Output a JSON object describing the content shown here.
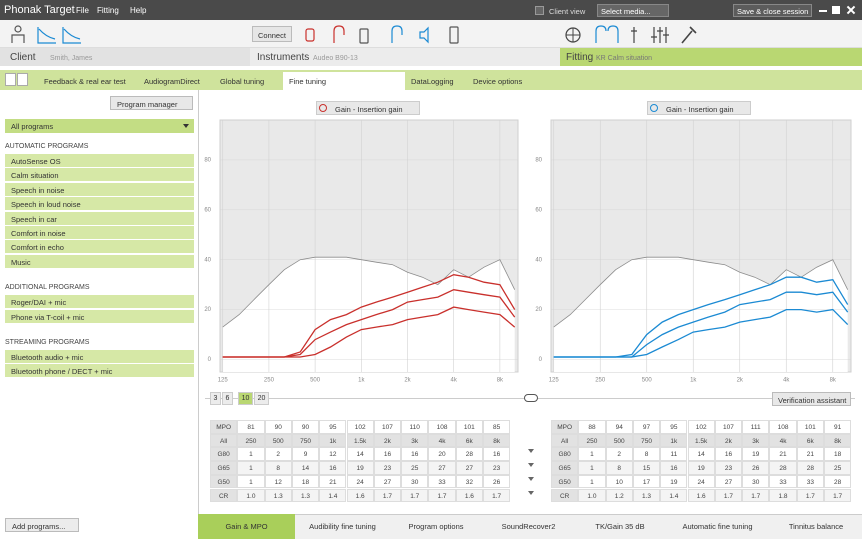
{
  "title_bar": {
    "app": "Phonak Target",
    "menu": [
      "File",
      "Fitting",
      "Help"
    ],
    "client_view": "Client view",
    "media_select": "Select media...",
    "save": "Save & close session"
  },
  "toolbar": {
    "connect": "Connect"
  },
  "session": {
    "client_label": "Client",
    "client": "Smith, James",
    "instruments_label": "Instruments",
    "instruments": "Audeo B90-13",
    "fitting_label": "Fitting",
    "fitting": "KR Calm situation"
  },
  "tabs": {
    "items": [
      "Feedback & real ear test",
      "AudiogramDirect",
      "Global tuning",
      "Fine tuning",
      "DataLogging",
      "Device options"
    ],
    "active": 3
  },
  "programs": {
    "manager": "Program manager",
    "selector": "All programs",
    "groups": [
      {
        "heading": "AUTOMATIC PROGRAMS",
        "items": [
          "AutoSense OS",
          "Calm situation",
          "Speech in noise",
          "Speech in loud noise",
          "Speech in car",
          "Comfort in noise",
          "Comfort in echo",
          "Music"
        ]
      },
      {
        "heading": "ADDITIONAL PROGRAMS",
        "items": [
          "Roger/DAI + mic",
          "Phone via T-coil + mic"
        ]
      },
      {
        "heading": "STREAMING PROGRAMS",
        "items": [
          "Bluetooth audio + mic",
          "Bluetooth phone / DECT + mic"
        ]
      }
    ],
    "add": "Add programs..."
  },
  "chart_data": [
    {
      "type": "line",
      "title": "Gain - Insertion gain",
      "log_x": true,
      "grid": true,
      "x": [
        125,
        160,
        200,
        250,
        315,
        400,
        500,
        630,
        800,
        1000,
        1250,
        1600,
        2000,
        2500,
        3150,
        4000,
        5000,
        6300,
        8000,
        10000
      ],
      "xlim": [
        120,
        10500
      ],
      "ylim": [
        -5,
        96
      ],
      "xticks": [
        125,
        250,
        500,
        {
          "value": 1000,
          "label": "1k"
        },
        {
          "value": 2000,
          "label": "2k"
        },
        {
          "value": 4000,
          "label": "4k"
        },
        {
          "value": 8000,
          "label": "8k"
        }
      ],
      "yticks": [
        0,
        20,
        40,
        60,
        80
      ],
      "series": [
        {
          "color": "#8c8c8c",
          "fill": "#ffffff",
          "values": [
            13,
            18,
            24,
            30,
            36,
            40,
            41,
            41,
            41,
            40,
            39,
            38,
            35,
            33,
            30,
            36,
            33,
            37,
            40,
            28
          ]
        },
        {
          "color": "#c9302c",
          "values": [
            1,
            1,
            1,
            1,
            1,
            3,
            12,
            16,
            18,
            21,
            23,
            25,
            27,
            29,
            31,
            34,
            33,
            31,
            30,
            20
          ]
        },
        {
          "color": "#c9302c",
          "values": [
            1,
            1,
            1,
            1,
            1,
            2,
            8,
            11,
            14,
            16,
            18,
            20,
            23,
            24,
            25,
            28,
            27,
            26,
            25,
            17
          ]
        },
        {
          "color": "#c9302c",
          "values": [
            1,
            1,
            1,
            1,
            1,
            1,
            2,
            5,
            9,
            12,
            13,
            14,
            16,
            17,
            18,
            21,
            20,
            19,
            18,
            13
          ]
        }
      ]
    },
    {
      "type": "line",
      "title": "Gain - Insertion gain",
      "log_x": true,
      "grid": true,
      "x": [
        125,
        160,
        200,
        250,
        315,
        400,
        500,
        630,
        800,
        1000,
        1250,
        1600,
        2000,
        2500,
        3150,
        4000,
        5000,
        6300,
        8000,
        10000
      ],
      "xlim": [
        120,
        10500
      ],
      "ylim": [
        -5,
        96
      ],
      "xticks": [
        125,
        250,
        500,
        {
          "value": 1000,
          "label": "1k"
        },
        {
          "value": 2000,
          "label": "2k"
        },
        {
          "value": 4000,
          "label": "4k"
        },
        {
          "value": 8000,
          "label": "8k"
        }
      ],
      "yticks": [
        0,
        20,
        40,
        60,
        80
      ],
      "series": [
        {
          "color": "#8c8c8c",
          "fill": "#ffffff",
          "values": [
            13,
            18,
            24,
            30,
            36,
            40,
            41,
            41,
            41,
            40,
            39,
            38,
            35,
            33,
            30,
            36,
            33,
            37,
            40,
            28
          ]
        },
        {
          "color": "#1b8ad3",
          "values": [
            1,
            1,
            1,
            1,
            1,
            2,
            10,
            15,
            18,
            20,
            22,
            24,
            26,
            28,
            30,
            33,
            33,
            31,
            32,
            22
          ]
        },
        {
          "color": "#1b8ad3",
          "values": [
            1,
            1,
            1,
            1,
            1,
            1,
            6,
            10,
            13,
            15,
            17,
            19,
            22,
            23,
            24,
            27,
            27,
            26,
            27,
            19
          ]
        },
        {
          "color": "#1b8ad3",
          "values": [
            1,
            1,
            1,
            1,
            1,
            1,
            2,
            5,
            8,
            11,
            12,
            13,
            15,
            16,
            17,
            20,
            20,
            19,
            20,
            14
          ]
        }
      ]
    }
  ],
  "level_buttons": {
    "items": [
      "3",
      "6",
      "10",
      "20"
    ],
    "active": 2
  },
  "verification": "Verification assistant",
  "tables": [
    {
      "rows": [
        [
          "MPO",
          "81",
          "90",
          "90",
          "95",
          "102",
          "107",
          "110",
          "108",
          "101",
          "85"
        ],
        [
          "All",
          "250",
          "500",
          "750",
          "1k",
          "1.5k",
          "2k",
          "3k",
          "4k",
          "6k",
          "8k"
        ],
        [
          "G80",
          "1",
          "2",
          "9",
          "12",
          "14",
          "16",
          "16",
          "20",
          "28",
          "16"
        ],
        [
          "G65",
          "1",
          "8",
          "14",
          "16",
          "19",
          "23",
          "25",
          "27",
          "27",
          "23"
        ],
        [
          "G50",
          "1",
          "12",
          "18",
          "21",
          "24",
          "27",
          "30",
          "33",
          "32",
          "26"
        ],
        [
          "CR",
          "1.0",
          "1.3",
          "1.3",
          "1.4",
          "1.6",
          "1.7",
          "1.7",
          "1.7",
          "1.6",
          "1.7"
        ]
      ]
    },
    {
      "rows": [
        [
          "MPO",
          "88",
          "94",
          "97",
          "95",
          "102",
          "107",
          "111",
          "108",
          "101",
          "91"
        ],
        [
          "All",
          "250",
          "500",
          "750",
          "1k",
          "1.5k",
          "2k",
          "3k",
          "4k",
          "6k",
          "8k"
        ],
        [
          "G80",
          "1",
          "2",
          "8",
          "11",
          "14",
          "16",
          "19",
          "21",
          "21",
          "18"
        ],
        [
          "G65",
          "1",
          "8",
          "15",
          "16",
          "19",
          "23",
          "26",
          "28",
          "28",
          "25"
        ],
        [
          "G50",
          "1",
          "10",
          "17",
          "19",
          "24",
          "27",
          "30",
          "33",
          "33",
          "28"
        ],
        [
          "CR",
          "1.0",
          "1.2",
          "1.3",
          "1.4",
          "1.6",
          "1.7",
          "1.7",
          "1.8",
          "1.7",
          "1.7"
        ]
      ]
    }
  ],
  "bottom_tabs": {
    "items": [
      "Gain & MPO",
      "Audibility fine tuning",
      "Program options",
      "SoundRecover2",
      "TK/Gain 35 dB",
      "Automatic fine tuning",
      "Tinnitus balance"
    ],
    "active": 0
  }
}
